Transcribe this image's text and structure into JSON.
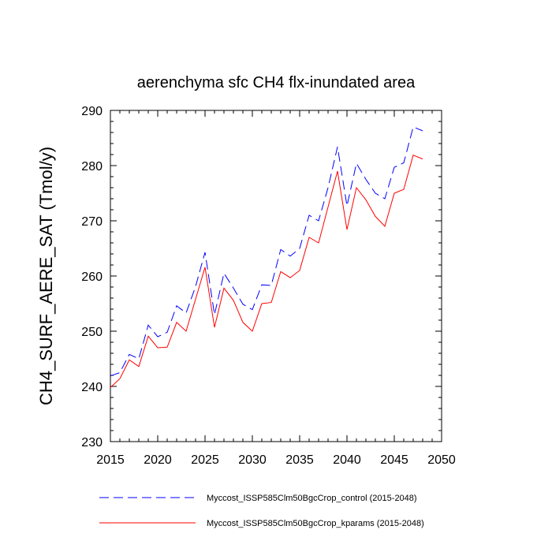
{
  "chart_data": {
    "type": "line",
    "title": "aerenchyma sfc CH4 flx-inundated area",
    "xlabel": "",
    "ylabel": "CH4_SURF_AERE_SAT  (Tmol/y)",
    "xlim": [
      2015,
      2050
    ],
    "ylim": [
      230,
      290
    ],
    "x_ticks": [
      2015,
      2020,
      2025,
      2030,
      2035,
      2040,
      2045,
      2050
    ],
    "y_ticks": [
      230,
      240,
      250,
      260,
      270,
      280,
      290
    ],
    "x": [
      2015,
      2016,
      2017,
      2018,
      2019,
      2020,
      2021,
      2022,
      2023,
      2024,
      2025,
      2026,
      2027,
      2028,
      2029,
      2030,
      2031,
      2032,
      2033,
      2034,
      2035,
      2036,
      2037,
      2038,
      2039,
      2040,
      2041,
      2042,
      2043,
      2044,
      2045,
      2046,
      2047,
      2048
    ],
    "series": [
      {
        "name": "Myccost_ISSP585Clm50BgcCrop_control (2015-2048)",
        "color": "#0000ff",
        "dash": "dashed",
        "values": [
          241.9,
          242.5,
          245.8,
          245.0,
          251.1,
          249.0,
          249.8,
          254.6,
          253.3,
          258.1,
          264.3,
          253.0,
          260.5,
          257.8,
          254.9,
          253.9,
          258.4,
          258.3,
          264.8,
          263.6,
          265.0,
          271.0,
          270.0,
          276.0,
          283.4,
          272.7,
          280.4,
          277.5,
          275.0,
          274.0,
          279.7,
          280.5,
          287.0,
          286.3
        ]
      },
      {
        "name": "Myccost_ISSP585Clm50BgcCrop_kparams (2015-2048)",
        "color": "#ff0000",
        "dash": "solid",
        "values": [
          239.8,
          241.4,
          244.8,
          243.6,
          249.1,
          247.0,
          247.1,
          251.6,
          250.0,
          255.8,
          261.6,
          250.7,
          257.8,
          255.6,
          251.6,
          250.0,
          255.0,
          255.2,
          260.8,
          259.7,
          261.0,
          267.0,
          266.0,
          272.5,
          279.0,
          268.4,
          276.0,
          273.8,
          270.8,
          269.0,
          275.0,
          275.7,
          281.9,
          281.2
        ]
      }
    ]
  }
}
